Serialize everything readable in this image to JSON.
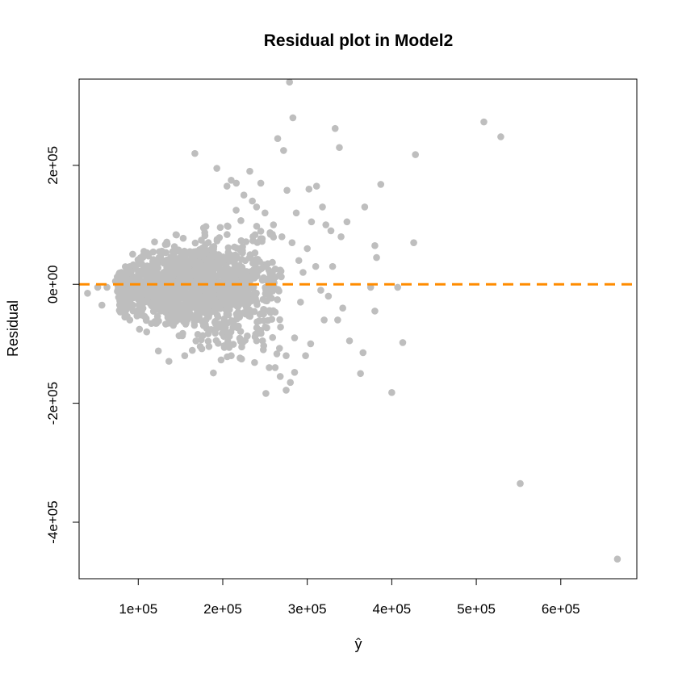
{
  "chart_data": {
    "type": "scatter",
    "title": "Residual plot in Model2",
    "xlabel": "ŷ",
    "ylabel": "Residual",
    "xlim": [
      30000,
      690000
    ],
    "ylim": [
      -495000,
      345000
    ],
    "x_ticks": [
      100000,
      200000,
      300000,
      400000,
      500000,
      600000
    ],
    "x_tick_labels": [
      "1e+05",
      "2e+05",
      "3e+05",
      "4e+05",
      "5e+05",
      "6e+05"
    ],
    "y_ticks": [
      -400000,
      -200000,
      0,
      200000
    ],
    "y_tick_labels": [
      "-4e+05",
      "-2e+05",
      "0e+00",
      "2e+05"
    ],
    "reference_line": {
      "y": 0,
      "style": "dashed",
      "color": "#ff8c00"
    },
    "point_color": "#bebebe",
    "grid": false,
    "cluster": {
      "note_count": 1400,
      "description": "dense cloud of points",
      "x_center": 165000,
      "x_spread": 50000,
      "x_min": 75000,
      "x_max": 270000,
      "y_spread_base": 22000
    },
    "points": [
      {
        "x": 40000,
        "y": -15000
      },
      {
        "x": 52000,
        "y": -5000
      },
      {
        "x": 57000,
        "y": -35000
      },
      {
        "x": 63000,
        "y": -5000
      },
      {
        "x": 73000,
        "y": 5000
      },
      {
        "x": 80000,
        "y": 20000
      },
      {
        "x": 85000,
        "y": -45000
      },
      {
        "x": 90000,
        "y": -60000
      },
      {
        "x": 167000,
        "y": 220000
      },
      {
        "x": 193000,
        "y": 195000
      },
      {
        "x": 210000,
        "y": 175000
      },
      {
        "x": 232000,
        "y": 190000
      },
      {
        "x": 245000,
        "y": 170000
      },
      {
        "x": 265000,
        "y": 245000
      },
      {
        "x": 272000,
        "y": 225000
      },
      {
        "x": 279000,
        "y": 340000
      },
      {
        "x": 283000,
        "y": 280000
      },
      {
        "x": 287000,
        "y": 120000
      },
      {
        "x": 276000,
        "y": 158000
      },
      {
        "x": 302000,
        "y": 160000
      },
      {
        "x": 305000,
        "y": 105000
      },
      {
        "x": 311000,
        "y": 165000
      },
      {
        "x": 318000,
        "y": 130000
      },
      {
        "x": 322000,
        "y": 100000
      },
      {
        "x": 328000,
        "y": 90000
      },
      {
        "x": 333000,
        "y": 262000
      },
      {
        "x": 338000,
        "y": 230000
      },
      {
        "x": 340000,
        "y": 80000
      },
      {
        "x": 347000,
        "y": 105000
      },
      {
        "x": 300000,
        "y": 60000
      },
      {
        "x": 290000,
        "y": 40000
      },
      {
        "x": 295000,
        "y": 20000
      },
      {
        "x": 310000,
        "y": 30000
      },
      {
        "x": 316000,
        "y": -10000
      },
      {
        "x": 325000,
        "y": -20000
      },
      {
        "x": 330000,
        "y": 30000
      },
      {
        "x": 336000,
        "y": -60000
      },
      {
        "x": 342000,
        "y": -40000
      },
      {
        "x": 350000,
        "y": -95000
      },
      {
        "x": 363000,
        "y": -150000
      },
      {
        "x": 366000,
        "y": -115000
      },
      {
        "x": 368000,
        "y": 130000
      },
      {
        "x": 375000,
        "y": -5000
      },
      {
        "x": 380000,
        "y": 65000
      },
      {
        "x": 382000,
        "y": 45000
      },
      {
        "x": 380000,
        "y": -45000
      },
      {
        "x": 387000,
        "y": 168000
      },
      {
        "x": 400000,
        "y": -182000
      },
      {
        "x": 407000,
        "y": -5000
      },
      {
        "x": 413000,
        "y": -98000
      },
      {
        "x": 426000,
        "y": 70000
      },
      {
        "x": 428000,
        "y": 218000
      },
      {
        "x": 509000,
        "y": 273000
      },
      {
        "x": 529000,
        "y": 248000
      },
      {
        "x": 552000,
        "y": -335000
      },
      {
        "x": 667000,
        "y": -462000
      },
      {
        "x": 262000,
        "y": -140000
      },
      {
        "x": 268000,
        "y": -155000
      },
      {
        "x": 275000,
        "y": -178000
      },
      {
        "x": 280000,
        "y": -165000
      },
      {
        "x": 285000,
        "y": -148000
      },
      {
        "x": 298000,
        "y": -120000
      },
      {
        "x": 304000,
        "y": -100000
      },
      {
        "x": 255000,
        "y": -140000
      },
      {
        "x": 248000,
        "y": -110000
      },
      {
        "x": 240000,
        "y": -95000
      },
      {
        "x": 155000,
        "y": -120000
      },
      {
        "x": 210000,
        "y": -120000
      },
      {
        "x": 110000,
        "y": -80000
      },
      {
        "x": 250000,
        "y": 120000
      },
      {
        "x": 260000,
        "y": 100000
      },
      {
        "x": 235000,
        "y": 140000
      },
      {
        "x": 225000,
        "y": 150000
      },
      {
        "x": 205000,
        "y": 165000
      },
      {
        "x": 216000,
        "y": 170000
      },
      {
        "x": 240000,
        "y": 130000
      },
      {
        "x": 270000,
        "y": 80000
      },
      {
        "x": 282000,
        "y": 70000
      },
      {
        "x": 292000,
        "y": -30000
      },
      {
        "x": 320000,
        "y": -60000
      },
      {
        "x": 285000,
        "y": -90000
      },
      {
        "x": 275000,
        "y": -120000
      }
    ]
  }
}
